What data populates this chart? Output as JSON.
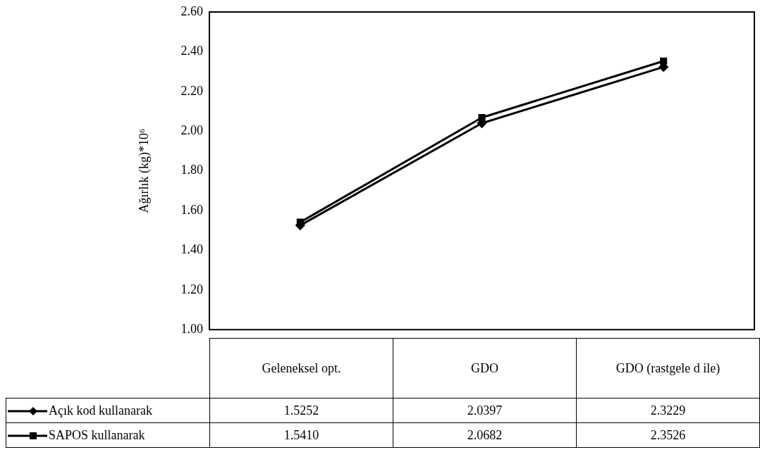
{
  "chart_data": {
    "type": "line",
    "ylabel": "Ağırlık (kg)*10⁶",
    "categories": [
      "Geleneksel opt.",
      "GDO",
      "GDO (rastgele d ile)"
    ],
    "series": [
      {
        "name": "Açık kod kullanarak",
        "color": "#000000",
        "marker": "diamond",
        "values": [
          1.5252,
          2.0397,
          2.3229
        ],
        "value_labels": [
          "1.5252",
          "2.0397",
          "2.3229"
        ]
      },
      {
        "name": "SAPOS kullanarak",
        "color": "#000000",
        "marker": "square",
        "values": [
          1.541,
          2.0682,
          2.3526
        ],
        "value_labels": [
          "1.5410",
          "2.0682",
          "2.3526"
        ]
      }
    ],
    "ylim": [
      1,
      2.6
    ],
    "yticks": [
      {
        "value": 1,
        "label": "1.00"
      },
      {
        "value": 1.2,
        "label": "1.20"
      },
      {
        "value": 1.4,
        "label": "1.40"
      },
      {
        "value": 1.6,
        "label": "1.60"
      },
      {
        "value": 1.8,
        "label": "1.80"
      },
      {
        "value": 2,
        "label": "2.00"
      },
      {
        "value": 2.2,
        "label": "2.20"
      },
      {
        "value": 2.4,
        "label": "2.40"
      },
      {
        "value": 2.6,
        "label": "2.60"
      }
    ],
    "grid": false,
    "legend": "bottom",
    "data_labels": true
  }
}
